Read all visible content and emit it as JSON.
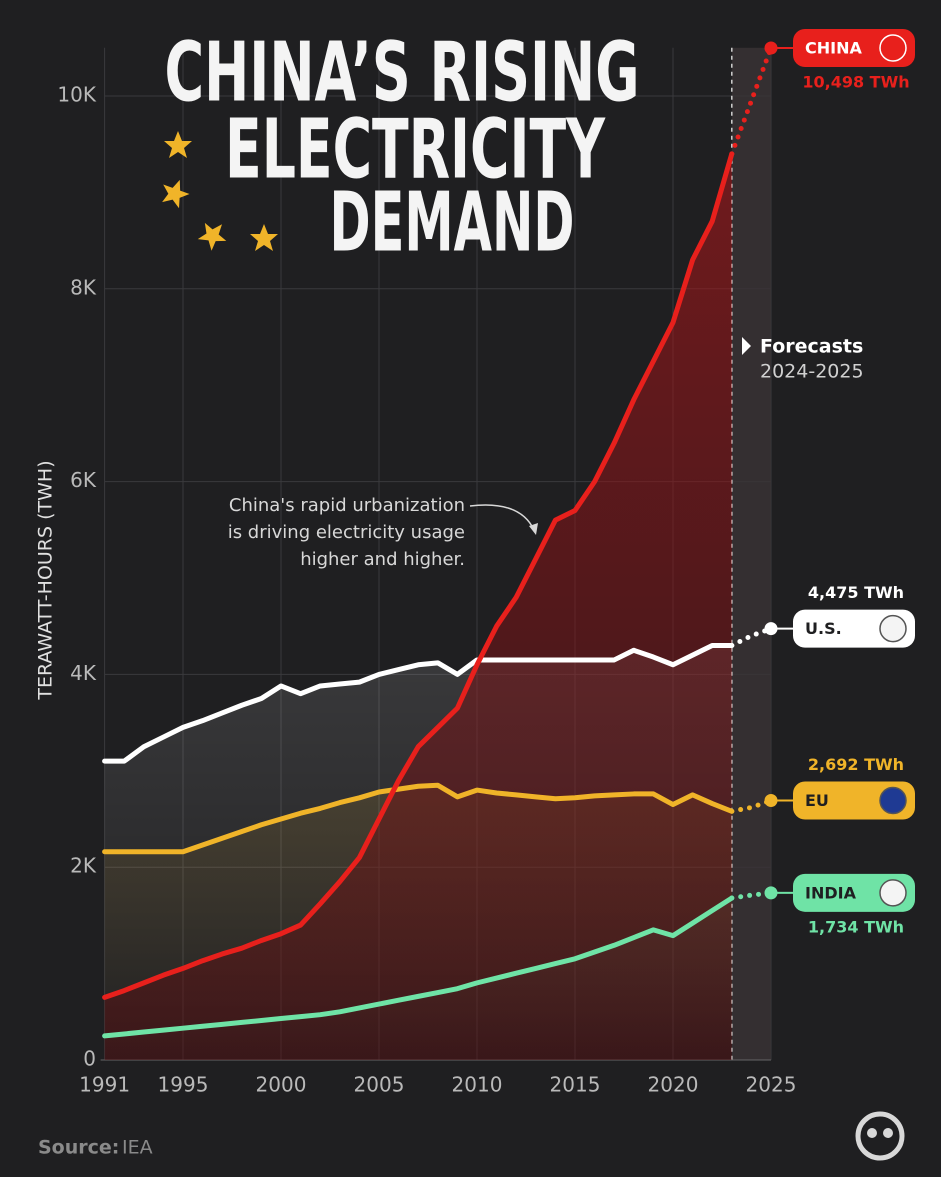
{
  "chart_data": {
    "type": "line",
    "title_lines": [
      "CHINA’S RISING",
      "ELECTRICITY",
      "DEMAND"
    ],
    "y_label": "TERAWATT-HOURS (TWH)",
    "annotation_lines": [
      "China's rapid urbanization",
      "is driving electricity usage",
      "higher and higher."
    ],
    "forecast": {
      "label": "Forecasts",
      "range": "2024-2025"
    },
    "source": {
      "label": "Source:",
      "text": "IEA"
    },
    "x": [
      1991,
      1992,
      1993,
      1994,
      1995,
      1996,
      1997,
      1998,
      1999,
      2000,
      2001,
      2002,
      2003,
      2004,
      2005,
      2006,
      2007,
      2008,
      2009,
      2010,
      2011,
      2012,
      2013,
      2014,
      2015,
      2016,
      2017,
      2018,
      2019,
      2020,
      2021,
      2022,
      2023,
      2024,
      2025
    ],
    "xlim": [
      1991,
      2025
    ],
    "xticks": [
      1991,
      1995,
      2000,
      2005,
      2010,
      2015,
      2020,
      2025
    ],
    "ylim": [
      0,
      10500
    ],
    "yticks": [
      0,
      {
        "value": 2000,
        "label": "2K"
      },
      {
        "value": 4000,
        "label": "4K"
      },
      {
        "value": 6000,
        "label": "6K"
      },
      {
        "value": 8000,
        "label": "8K"
      },
      {
        "value": 10000,
        "label": "10K"
      }
    ],
    "grid": true,
    "series": [
      {
        "name": "CHINA",
        "color": "#e8201c",
        "values": [
          650,
          720,
          800,
          880,
          950,
          1030,
          1100,
          1160,
          1240,
          1310,
          1400,
          1620,
          1850,
          2100,
          2500,
          2900,
          3250,
          3450,
          3650,
          4100,
          4500,
          4800,
          5200,
          5600,
          5700,
          6000,
          6400,
          6850,
          7250,
          7650,
          8300,
          8700,
          9400,
          9950,
          10498
        ],
        "value_labels": [
          null,
          null,
          null,
          null,
          null,
          null,
          null,
          null,
          null,
          null,
          null,
          null,
          null,
          null,
          null,
          null,
          null,
          null,
          null,
          null,
          null,
          null,
          null,
          null,
          null,
          null,
          null,
          null,
          null,
          null,
          null,
          null,
          null,
          null,
          "10,498 TWh"
        ]
      },
      {
        "name": "U.S.",
        "color": "#ffffff",
        "values": [
          3100,
          3100,
          3250,
          3350,
          3450,
          3520,
          3600,
          3680,
          3750,
          3880,
          3800,
          3880,
          3900,
          3920,
          4000,
          4050,
          4100,
          4120,
          4000,
          4150,
          4150,
          4150,
          4150,
          4150,
          4150,
          4150,
          4150,
          4250,
          4180,
          4100,
          4200,
          4300,
          4300,
          4400,
          4475
        ],
        "value_labels": [
          null,
          null,
          null,
          null,
          null,
          null,
          null,
          null,
          null,
          null,
          null,
          null,
          null,
          null,
          null,
          null,
          null,
          null,
          null,
          null,
          null,
          null,
          null,
          null,
          null,
          null,
          null,
          null,
          null,
          null,
          null,
          null,
          null,
          null,
          "4,475 TWh"
        ]
      },
      {
        "name": "EU",
        "color": "#f0b429",
        "values": [
          2160,
          2160,
          2160,
          2160,
          2160,
          2230,
          2300,
          2370,
          2440,
          2500,
          2560,
          2610,
          2670,
          2720,
          2780,
          2810,
          2840,
          2850,
          2730,
          2800,
          2770,
          2750,
          2730,
          2710,
          2720,
          2740,
          2750,
          2760,
          2760,
          2650,
          2750,
          2660,
          2580,
          2620,
          2692
        ],
        "value_labels": [
          null,
          null,
          null,
          null,
          null,
          null,
          null,
          null,
          null,
          null,
          null,
          null,
          null,
          null,
          null,
          null,
          null,
          null,
          null,
          null,
          null,
          null,
          null,
          null,
          null,
          null,
          null,
          null,
          null,
          null,
          null,
          null,
          null,
          null,
          "2,692 TWh"
        ]
      },
      {
        "name": "INDIA",
        "color": "#6fe3a6",
        "values": [
          250,
          270,
          290,
          310,
          330,
          350,
          370,
          390,
          410,
          430,
          450,
          470,
          500,
          540,
          580,
          620,
          660,
          700,
          740,
          800,
          850,
          900,
          950,
          1000,
          1050,
          1120,
          1190,
          1270,
          1350,
          1290,
          1420,
          1550,
          1680,
          1710,
          1734
        ],
        "value_labels": [
          null,
          null,
          null,
          null,
          null,
          null,
          null,
          null,
          null,
          null,
          null,
          null,
          null,
          null,
          null,
          null,
          null,
          null,
          null,
          null,
          null,
          null,
          null,
          null,
          null,
          null,
          null,
          null,
          null,
          null,
          null,
          null,
          null,
          null,
          "1,734 TWh"
        ]
      }
    ]
  }
}
